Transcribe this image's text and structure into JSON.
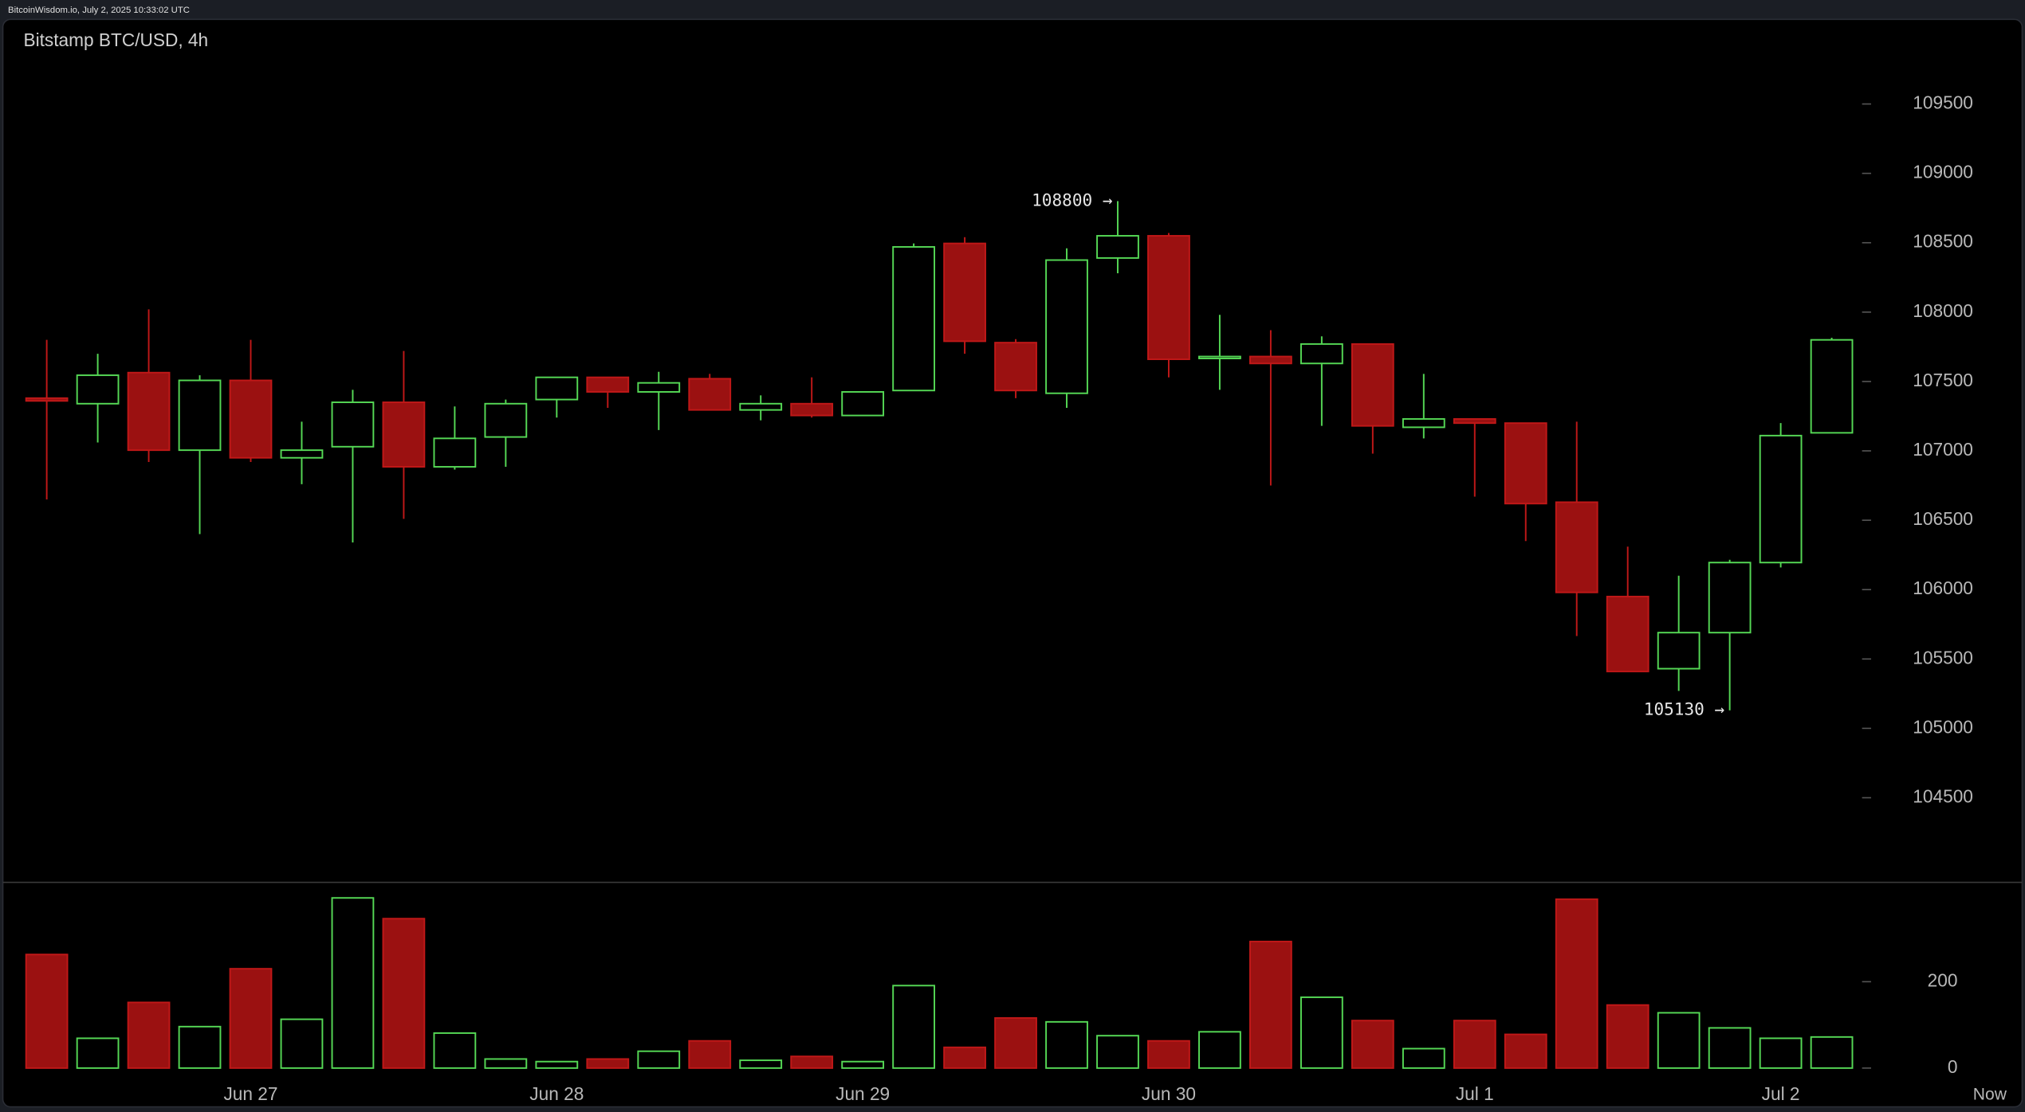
{
  "header": "BitcoinWisdom.io, July 2, 2025 10:33:02 UTC",
  "chart_data": {
    "type": "candlestick",
    "title": "Bitstamp BTC/USD, 4h",
    "categories": [
      null,
      null,
      null,
      null,
      "Jun 27",
      null,
      null,
      null,
      null,
      null,
      "Jun 28",
      null,
      null,
      null,
      null,
      null,
      "Jun 29",
      null,
      null,
      null,
      null,
      null,
      "Jun 30",
      null,
      null,
      null,
      null,
      null,
      "Jul 1",
      null,
      null,
      null,
      null,
      null,
      "Jul 2",
      null
    ],
    "now_label": "Now",
    "open": [
      107380,
      107340,
      107564,
      107005,
      107508,
      106950,
      107030,
      107350,
      106885,
      107100,
      107370,
      107530,
      107425,
      107520,
      107295,
      107340,
      107255,
      107435,
      108495,
      107780,
      107415,
      108390,
      108550,
      107670,
      107680,
      107630,
      107770,
      107170,
      107230,
      107200,
      106630,
      105950,
      105430,
      105690,
      106195,
      107130
    ],
    "high": [
      107800,
      107700,
      108020,
      107545,
      107800,
      107210,
      107440,
      107720,
      107320,
      107370,
      107530,
      107530,
      107570,
      107555,
      107400,
      107530,
      107425,
      108495,
      108540,
      107805,
      108460,
      108800,
      108570,
      107980,
      107870,
      107825,
      107770,
      107555,
      107230,
      107200,
      107210,
      106310,
      106100,
      106215,
      107200,
      107815
    ],
    "low": [
      106650,
      107060,
      106920,
      106400,
      106920,
      106760,
      106340,
      106510,
      106865,
      106885,
      107240,
      107310,
      107150,
      107295,
      107220,
      107240,
      107250,
      107435,
      107700,
      107380,
      107310,
      108280,
      107530,
      107440,
      106750,
      107180,
      106980,
      107090,
      106670,
      106350,
      105665,
      105410,
      105270,
      105130,
      106160,
      107130
    ],
    "close": [
      107360,
      107545,
      107005,
      107508,
      106950,
      107005,
      107350,
      106885,
      107090,
      107340,
      107530,
      107425,
      107490,
      107295,
      107340,
      107255,
      107425,
      108470,
      107790,
      107435,
      108375,
      108550,
      107660,
      107680,
      107630,
      107770,
      107180,
      107230,
      107200,
      106620,
      105980,
      105410,
      105690,
      106195,
      107110,
      107800
    ],
    "volume": [
      263,
      69,
      152,
      96,
      230,
      113,
      394,
      346,
      81,
      21,
      15,
      21,
      39,
      63,
      18,
      27,
      15,
      191,
      48,
      116,
      107,
      75,
      63,
      84,
      293,
      164,
      110,
      45,
      110,
      78,
      391,
      146,
      128,
      93,
      69,
      72
    ],
    "up_color": "#55d855",
    "down_color": "#9b1111",
    "ylim": [
      103890,
      110110
    ],
    "yticks": [
      104500,
      105000,
      105500,
      106000,
      106500,
      107000,
      107500,
      108000,
      108500,
      109000,
      109500
    ],
    "vlim": [
      -36,
      424
    ],
    "vticks": [
      0,
      200
    ],
    "annotations": {
      "high_label": "108800 →",
      "low_label": "105130 →"
    }
  }
}
